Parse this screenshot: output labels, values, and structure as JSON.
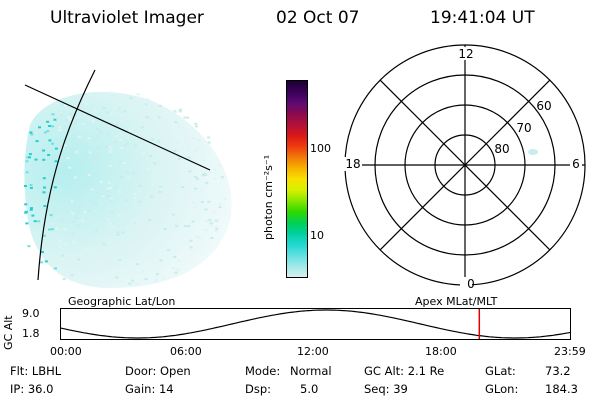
{
  "header": {
    "instrument": "Ultraviolet Imager",
    "date": "02 Oct 07",
    "time": "19:41:04 UT"
  },
  "colorbar": {
    "label": "photon cm⁻²s⁻¹",
    "ticks": [
      "100",
      "10"
    ],
    "colors": [
      "#1a0033",
      "#3a0058",
      "#5c0a74",
      "#8a0a4e",
      "#b0103a",
      "#d81818",
      "#f03a10",
      "#f07a08",
      "#f8b000",
      "#f8e000",
      "#d8f000",
      "#88e800",
      "#30d800",
      "#00d050",
      "#00d0a0",
      "#20d8d0",
      "#60e0e0",
      "#a0e8e8",
      "#d8f0f0"
    ]
  },
  "polar": {
    "labels": {
      "top": "12",
      "bottom": "0",
      "left": "18",
      "right": "6"
    },
    "ring_labels": [
      "60",
      "70",
      "80"
    ]
  },
  "timeline": {
    "left_label": "Geographic Lat/Lon",
    "right_label": "Apex MLat/MLT",
    "axis_title": "GC Alt",
    "y_max": "9.0",
    "y_min": "1.8",
    "x_ticks": [
      "00:00",
      "06:00",
      "12:00",
      "18:00",
      "23:59"
    ],
    "marker_color": "#e00000"
  },
  "info": {
    "flt": "Flt: LBHL",
    "ip": "IP: 36.0",
    "door": "Door: Open",
    "gain": "Gain: 14",
    "mode_label": "Mode:",
    "mode_value": "Normal",
    "dsp_label": "Dsp:",
    "dsp_value": "5.0",
    "gcalt": "GC Alt: 2.1 Re",
    "seq": "Seq: 39",
    "glat_label": "GLat:",
    "glat_value": "73.2",
    "glon_label": "GLon:",
    "glon_value": "184.3"
  }
}
